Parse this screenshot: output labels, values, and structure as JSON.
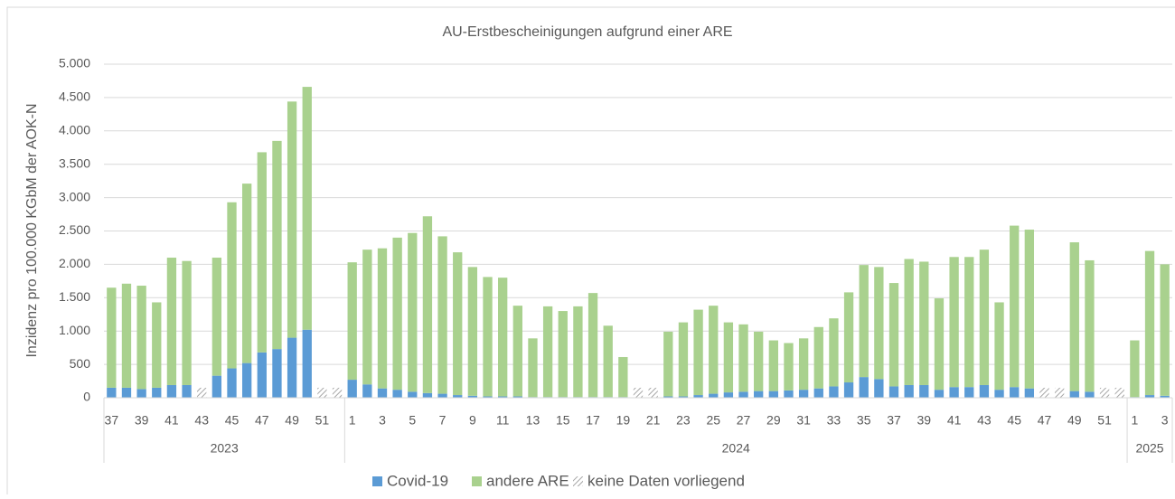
{
  "chart_data": {
    "type": "stacked_bar",
    "title": "AU-Erstbescheinigungen aufgrund einer ARE",
    "y_label": "Inzidenz pro 100.000 KGbM der AOK-N",
    "categories": [
      "37",
      null,
      "39",
      null,
      "41",
      null,
      "43",
      null,
      "45",
      null,
      "47",
      null,
      "49",
      null,
      "51",
      null,
      "1",
      null,
      "3",
      null,
      "5",
      null,
      "7",
      null,
      "9",
      null,
      "11",
      null,
      "13",
      null,
      "15",
      null,
      "17",
      null,
      "19",
      null,
      "21",
      null,
      "23",
      null,
      "25",
      null,
      "27",
      null,
      "29",
      null,
      "31",
      null,
      "33",
      null,
      "35",
      null,
      "37",
      null,
      "39",
      null,
      "41",
      null,
      "43",
      null,
      "45",
      null,
      "47",
      null,
      "49",
      null,
      "51",
      null,
      "1",
      null,
      "3"
    ],
    "groups": [
      {
        "label": "2023",
        "count": 16
      },
      {
        "label": "2024",
        "count": 52
      },
      {
        "label": "2025",
        "count": 3
      }
    ],
    "series": [
      {
        "name": "Covid-19",
        "color": "#5b9bd5",
        "values": [
          150,
          150,
          130,
          150,
          190,
          190,
          null,
          330,
          440,
          520,
          680,
          730,
          900,
          1020,
          null,
          null,
          270,
          200,
          140,
          120,
          90,
          70,
          60,
          40,
          30,
          20,
          20,
          20,
          10,
          10,
          10,
          10,
          10,
          10,
          10,
          null,
          null,
          20,
          20,
          40,
          60,
          80,
          90,
          100,
          100,
          110,
          120,
          140,
          170,
          230,
          310,
          280,
          170,
          190,
          190,
          120,
          160,
          160,
          190,
          120,
          160,
          140,
          null,
          null,
          100,
          90,
          null,
          null,
          10,
          40,
          30
        ]
      },
      {
        "name": "andere ARE",
        "color": "#a9d18e",
        "values": [
          1500,
          1560,
          1550,
          1280,
          1910,
          1860,
          null,
          1770,
          2490,
          2690,
          3000,
          3120,
          3540,
          3640,
          null,
          null,
          1760,
          2020,
          2100,
          2280,
          2380,
          2650,
          2360,
          2140,
          1930,
          1790,
          1780,
          1360,
          880,
          1360,
          1290,
          1360,
          1560,
          1070,
          600,
          null,
          null,
          970,
          1110,
          1280,
          1320,
          1050,
          1010,
          890,
          760,
          710,
          770,
          920,
          1020,
          1350,
          1680,
          1680,
          1550,
          1890,
          1850,
          1370,
          1950,
          1950,
          2030,
          1310,
          2420,
          2380,
          null,
          null,
          2230,
          1970,
          null,
          null,
          850,
          2160,
          1970
        ]
      },
      {
        "name": "keine Daten vorliegend",
        "color": "#a6a6a6",
        "pattern": "hatch",
        "values": [
          null,
          null,
          null,
          null,
          null,
          null,
          150,
          null,
          null,
          null,
          null,
          null,
          null,
          null,
          150,
          150,
          null,
          null,
          null,
          null,
          null,
          null,
          null,
          null,
          null,
          null,
          null,
          null,
          null,
          null,
          null,
          null,
          null,
          null,
          null,
          150,
          150,
          null,
          null,
          null,
          null,
          null,
          null,
          null,
          null,
          null,
          null,
          null,
          null,
          null,
          null,
          null,
          null,
          null,
          null,
          null,
          null,
          null,
          null,
          null,
          null,
          null,
          150,
          150,
          null,
          null,
          150,
          150,
          null,
          null,
          null
        ]
      }
    ],
    "ylim": [
      0,
      5000
    ],
    "yticks": [
      0,
      {
        "value": 500,
        "label": "500"
      },
      {
        "value": 1000,
        "label": "1.000"
      },
      {
        "value": 1500,
        "label": "1.500"
      },
      {
        "value": 2000,
        "label": "2.000"
      },
      {
        "value": 2500,
        "label": "2.500"
      },
      {
        "value": 3000,
        "label": "3.000"
      },
      {
        "value": 3500,
        "label": "3.500"
      },
      {
        "value": 4000,
        "label": "4.000"
      },
      {
        "value": 4500,
        "label": "4.500"
      },
      {
        "value": 5000,
        "label": "5.000"
      }
    ],
    "grid": true,
    "legend": "bottom"
  }
}
